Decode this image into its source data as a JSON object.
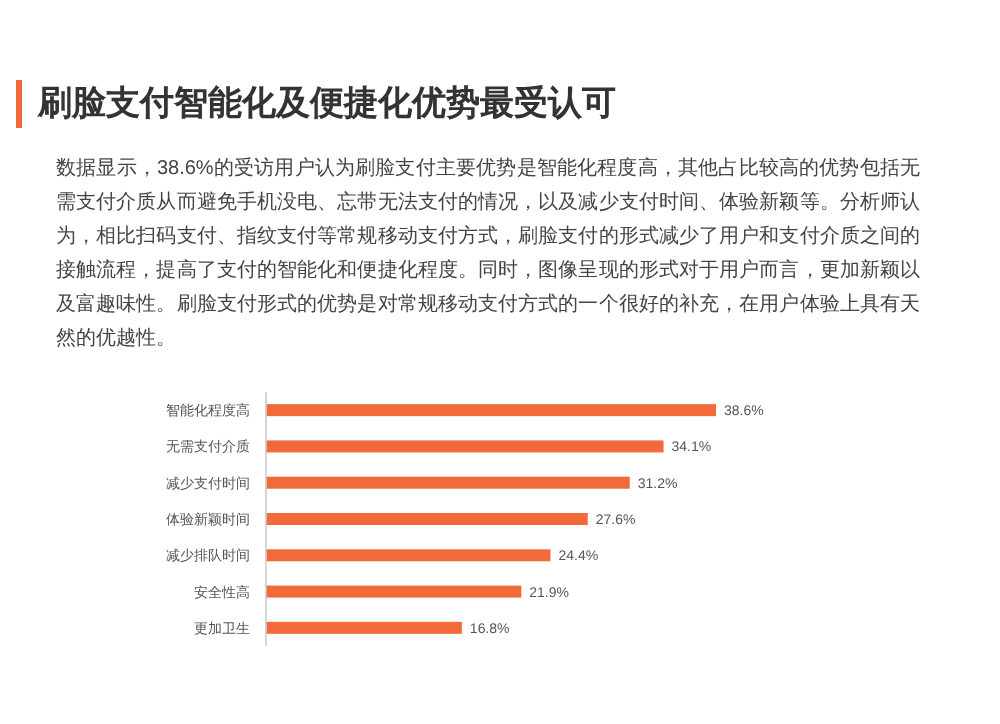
{
  "chart_data": {
    "type": "bar",
    "orientation": "horizontal",
    "title": "刷脸支付智能化及便捷化优势最受认可",
    "subtitle": "数据显示，38.6%的受访用户认为刷脸支付主要优势是智能化程度高，其他占比较高的优势包括无需支付介质从而避免手机没电、忘带无法支付的情况，以及减少支付时间、体验新颖等。分析师认为，相比扫码支付、指纹支付等常规移动支付方式，刷脸支付的形式减少了用户和支付介质之间的接触流程，提高了支付的智能化和便捷化程度。同时，图像呈现的形式对于用户而言，更加新颖以及富趣味性。刷脸支付形式的优势是对常规移动支付方式的一个很好的补充，在用户体验上具有天然的优越性。",
    "categories": [
      "智能化程度高",
      "无需支付介质",
      "减少支付时间",
      "体验新颖时间",
      "减少排队时间",
      "安全性高",
      "更加卫生"
    ],
    "values": [
      38.6,
      34.1,
      31.2,
      27.6,
      24.4,
      21.9,
      16.8
    ],
    "value_labels": [
      "38.6%",
      "34.1%",
      "31.2%",
      "27.6%",
      "24.4%",
      "21.9%",
      "16.8%"
    ],
    "color": "#f26a3a"
  }
}
